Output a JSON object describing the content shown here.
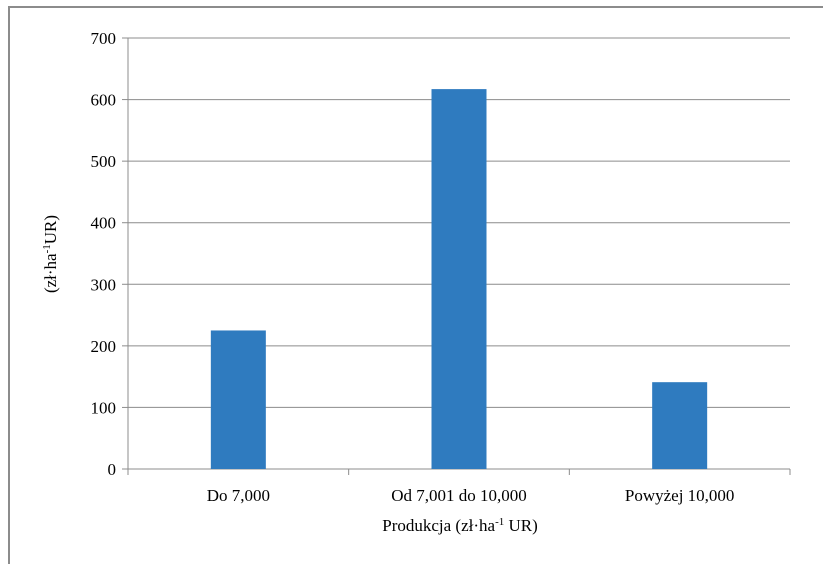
{
  "chart_data": {
    "type": "bar",
    "categories": [
      "Do 7,000",
      "Od 7,001 do 10,000",
      "Powyżej 10,000"
    ],
    "values": [
      225,
      617,
      141
    ],
    "ylim": [
      0,
      700
    ],
    "yticks": [
      0,
      100,
      200,
      300,
      400,
      500,
      600,
      700
    ],
    "ylabel": {
      "main": "(zł·ha",
      "sup": "-1",
      "tail": "UR)"
    },
    "xlabel": {
      "main": "Produkcja  (zł·ha",
      "sup": "-1",
      "tail": " UR)"
    },
    "grid": true,
    "legend": "none",
    "colors": {
      "bar": "#2f7bbf",
      "grid": "#8c8c8c",
      "axis": "#8c8c8c"
    }
  }
}
